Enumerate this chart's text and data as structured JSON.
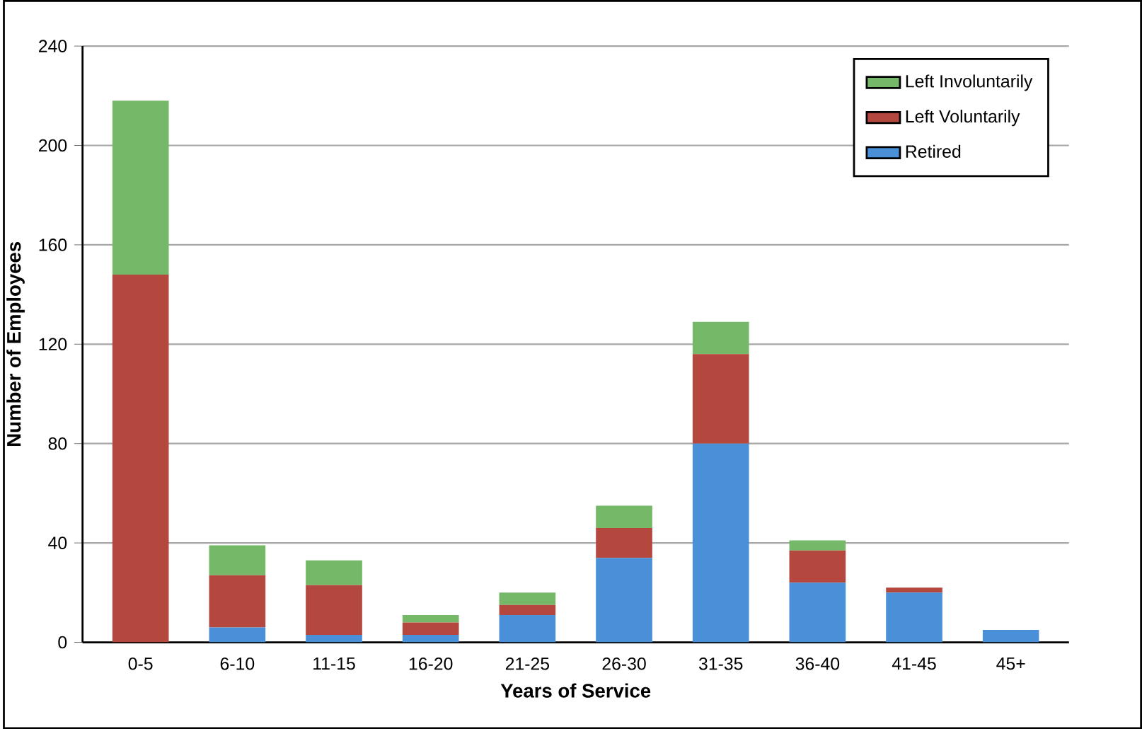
{
  "chart_data": {
    "type": "bar",
    "stacked": true,
    "xlabel": "Years of Service",
    "ylabel": "Number of Employees",
    "categories": [
      "0-5",
      "6-10",
      "11-15",
      "16-20",
      "21-25",
      "26-30",
      "31-35",
      "36-40",
      "41-45",
      "45+"
    ],
    "series": [
      {
        "name": "Retired",
        "color": "#4a90d9",
        "values": [
          0,
          6,
          3,
          3,
          11,
          34,
          80,
          24,
          20,
          5
        ]
      },
      {
        "name": "Left Voluntarily",
        "color": "#b5483e",
        "values": [
          148,
          21,
          20,
          5,
          4,
          12,
          36,
          13,
          2,
          0
        ]
      },
      {
        "name": "Left Involuntarily",
        "color": "#74b868",
        "values": [
          70,
          12,
          10,
          3,
          5,
          9,
          13,
          4,
          0,
          0
        ]
      }
    ],
    "ylim": [
      0,
      240
    ],
    "yticks": [
      0,
      40,
      80,
      120,
      160,
      200,
      240
    ],
    "grid": "y",
    "legend": "top right"
  }
}
